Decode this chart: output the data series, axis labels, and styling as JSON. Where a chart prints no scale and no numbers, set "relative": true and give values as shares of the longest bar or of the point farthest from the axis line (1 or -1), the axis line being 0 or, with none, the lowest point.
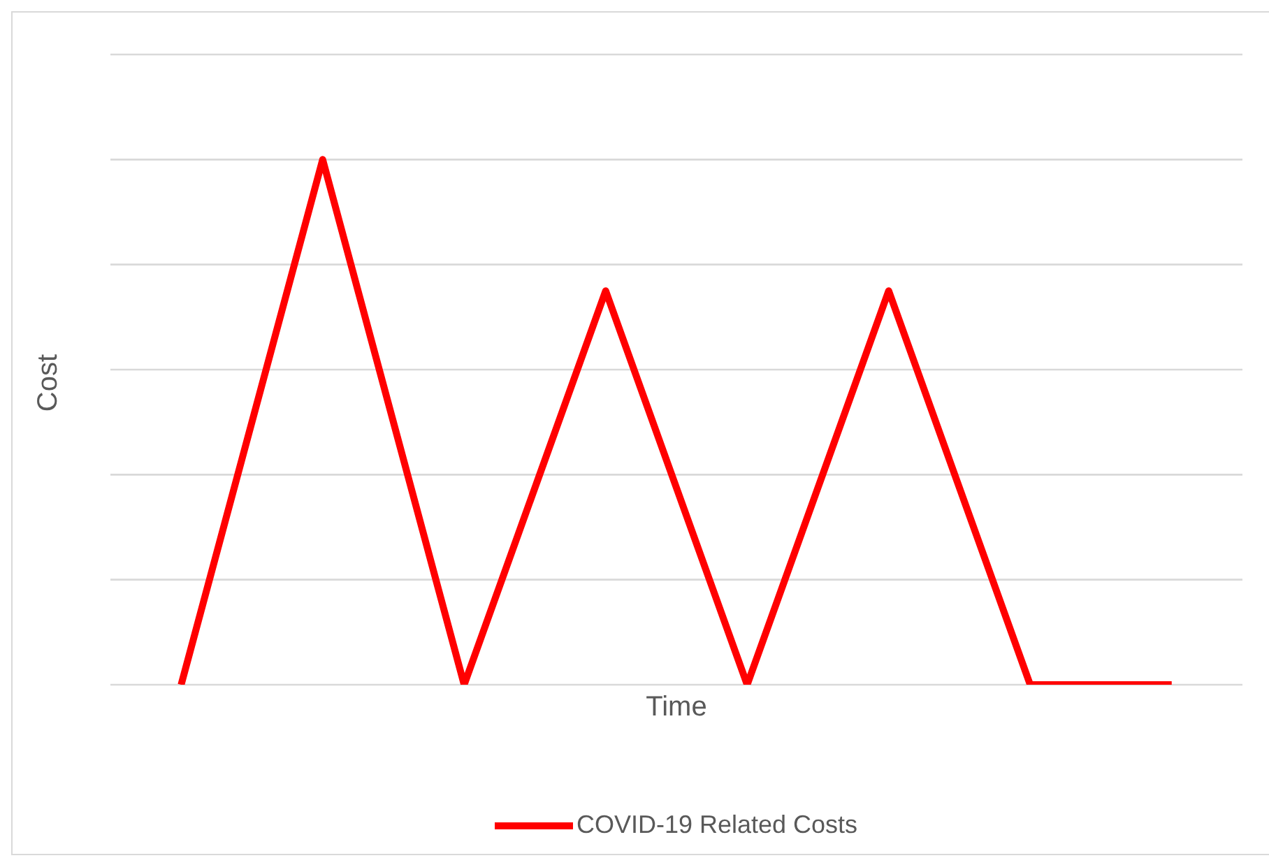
{
  "chart_data": {
    "type": "line",
    "xlabel": "Time",
    "ylabel": "Cost",
    "relative": true,
    "categories": [
      null,
      null,
      null,
      null,
      null,
      null,
      null,
      null
    ],
    "series": [
      {
        "name": "COVID-19 Related Costs",
        "color": "#ff0000",
        "values": [
          0,
          1,
          0,
          0.75,
          0,
          0.75,
          0,
          0
        ]
      }
    ],
    "grid": "y",
    "legend": "bottom",
    "marker": "none",
    "line_style": "solid"
  }
}
